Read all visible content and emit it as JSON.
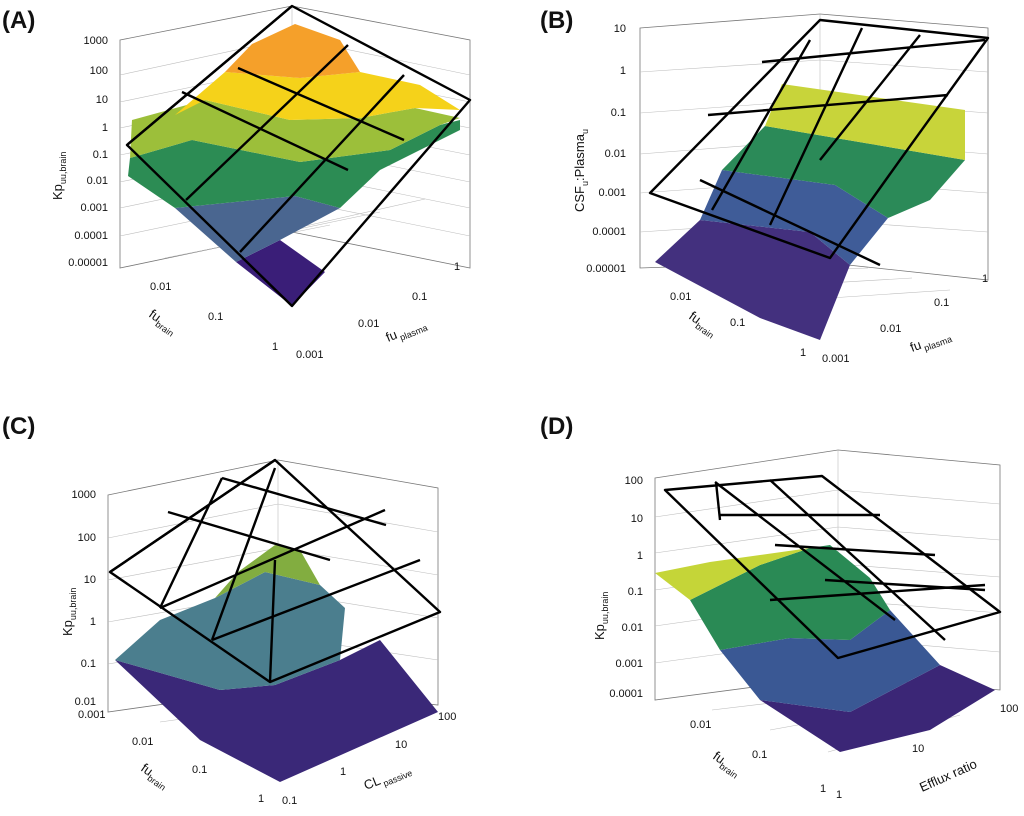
{
  "chart_data": [
    {
      "type": "surface3d",
      "panel_label": "(A)",
      "zlabel": {
        "main": "Kp",
        "sub": "uu,brain"
      },
      "xlabel": {
        "main": "fu",
        "sub": "brain"
      },
      "ylabel": {
        "main": "fu",
        "sub": "plasma"
      },
      "z_ticks": [
        "1000",
        "100",
        "10",
        "1",
        "0.1",
        "0.01",
        "0.001",
        "0.0001",
        "0.00001"
      ],
      "x_ticks": [
        "0.01",
        "0.1",
        "1"
      ],
      "y_ticks": [
        "1",
        "0.1",
        "0.01",
        "0.001"
      ],
      "x_range": [
        0.001,
        1
      ],
      "y_range": [
        0.001,
        1
      ],
      "zlim": [
        1e-05,
        1000
      ],
      "bands": [
        {
          "color": "#3a1e78"
        },
        {
          "color": "#4a6690"
        },
        {
          "color": "#2c8c54"
        },
        {
          "color": "#9cbf3a"
        },
        {
          "color": "#f5d21a"
        },
        {
          "color": "#f5a02a"
        }
      ]
    },
    {
      "type": "surface3d",
      "panel_label": "(B)",
      "zlabel": {
        "main": "CSF",
        "sub1": "u",
        "mid": ":Plasma",
        "sub2": "u"
      },
      "xlabel": {
        "main": "fu",
        "sub": "brain"
      },
      "ylabel": {
        "main": "fu",
        "sub": "plasma"
      },
      "z_ticks": [
        "10",
        "1",
        "0.1",
        "0.01",
        "0.001",
        "0.0001",
        "0.00001"
      ],
      "x_ticks": [
        "0.01",
        "0.1",
        "1"
      ],
      "y_ticks": [
        "1",
        "0.1",
        "0.01",
        "0.001"
      ],
      "x_range": [
        0.001,
        1
      ],
      "y_range": [
        0.001,
        1
      ],
      "zlim": [
        1e-05,
        10
      ],
      "bands": [
        {
          "color": "#43307e"
        },
        {
          "color": "#3f5c98"
        },
        {
          "color": "#2b8a58"
        },
        {
          "color": "#c8d43a"
        }
      ]
    },
    {
      "type": "surface3d",
      "panel_label": "(C)",
      "zlabel": {
        "main": "Kp",
        "sub": "uu,brain"
      },
      "xlabel": {
        "main": "fu",
        "sub": "brain"
      },
      "ylabel": {
        "main": "CL",
        "sub": "passive"
      },
      "z_ticks": [
        "1000",
        "100",
        "10",
        "1",
        "0.1",
        "0.01"
      ],
      "x_ticks": [
        "0.001",
        "0.01",
        "0.1",
        "1"
      ],
      "y_ticks": [
        "100",
        "10",
        "1",
        "0.1"
      ],
      "x_range": [
        0.001,
        1
      ],
      "y_range": [
        0.1,
        100
      ],
      "zlim": [
        0.01,
        1000
      ],
      "bands": [
        {
          "color": "#3a2878"
        },
        {
          "color": "#4b7e8e"
        },
        {
          "color": "#82ad40"
        }
      ]
    },
    {
      "type": "surface3d",
      "panel_label": "(D)",
      "zlabel": {
        "main": "Kp",
        "sub": "uu,brain"
      },
      "xlabel": {
        "main": "fu",
        "sub": "brain"
      },
      "ylabel": {
        "main": "Efflux ratio",
        "sub": ""
      },
      "z_ticks": [
        "100",
        "10",
        "1",
        "0.1",
        "0.01",
        "0.001",
        "0.0001"
      ],
      "x_ticks": [
        "0.01",
        "0.1",
        "1"
      ],
      "y_ticks": [
        "100",
        "10",
        "1"
      ],
      "x_range": [
        0.001,
        1
      ],
      "y_range": [
        1,
        100
      ],
      "zlim": [
        0.0001,
        100
      ],
      "bands": [
        {
          "color": "#3b2676"
        },
        {
          "color": "#3a5894"
        },
        {
          "color": "#2a8a55"
        },
        {
          "color": "#c5d538"
        }
      ]
    }
  ]
}
